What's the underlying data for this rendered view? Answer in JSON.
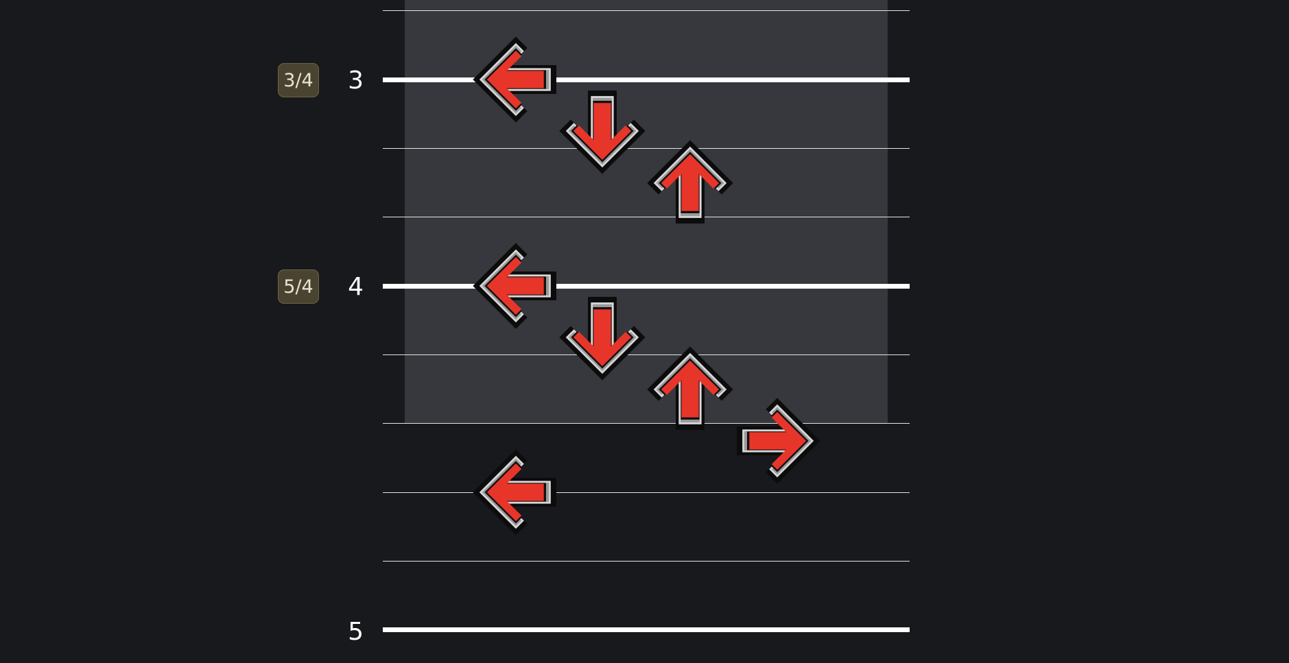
{
  "editor": {
    "lanes": [
      "left",
      "down",
      "up",
      "right"
    ],
    "colors": {
      "background": "#18191c",
      "selection": "#37383d",
      "arrow_fill": "#e8352a",
      "quant_badge": "#4a4330"
    },
    "measures": [
      {
        "number": "3",
        "quant_label": "3/4"
      },
      {
        "number": "4",
        "quant_label": "5/4"
      },
      {
        "number": "5",
        "quant_label": ""
      }
    ],
    "notes": [
      {
        "beat": 3.0,
        "lane": "left",
        "icon": "left-arrow-icon"
      },
      {
        "beat": 3.25,
        "lane": "down",
        "icon": "down-arrow-icon"
      },
      {
        "beat": 3.5,
        "lane": "up",
        "icon": "up-arrow-icon"
      },
      {
        "beat": 4.0,
        "lane": "left",
        "icon": "left-arrow-icon"
      },
      {
        "beat": 4.25,
        "lane": "down",
        "icon": "down-arrow-icon"
      },
      {
        "beat": 4.5,
        "lane": "up",
        "icon": "up-arrow-icon"
      },
      {
        "beat": 4.75,
        "lane": "right",
        "icon": "right-arrow-icon"
      },
      {
        "beat": 5.0,
        "lane": "left",
        "icon": "left-arrow-icon"
      }
    ]
  }
}
